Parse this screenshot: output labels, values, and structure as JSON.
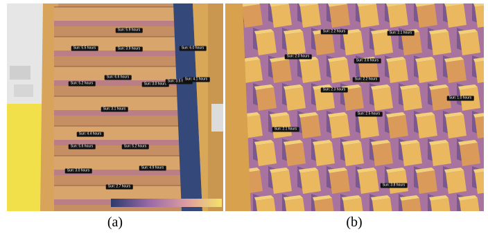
{
  "panels": [
    {
      "caption": "(a)",
      "labels": [
        "Sun: 5.9 hours",
        "Sun: 5.5 hours",
        "Sun: 3.9 hours",
        "Sun: 6.0 hours",
        "Sun: 6.6 hours",
        "Sun: 5.2 hours",
        "Sun: 3.0 hours",
        "Sun: 3.5 hours",
        "Sun: 4.1 hours",
        "Sun: 3.1 hours",
        "Sun: 4.4 hours",
        "Sun: 5.6 hours",
        "Sun: 5.2 hours",
        "Sun: 3.0 hours",
        "Sun: 4.9 hours",
        "Sun: 2.7 hours"
      ]
    },
    {
      "caption": "(b)",
      "labels": [
        "Sun: 2.2 hours",
        "Sun: 2.1 hours",
        "Sun: 2.0 hours",
        "Sun: 3.6 hours",
        "Sun: 2.2 hours",
        "Sun: 2.3 hours",
        "Sun: 1.0 hours",
        "Sun: 2.5 hours",
        "Sun: 2.1 hours",
        "Sun: 3.8 hours"
      ]
    }
  ]
}
